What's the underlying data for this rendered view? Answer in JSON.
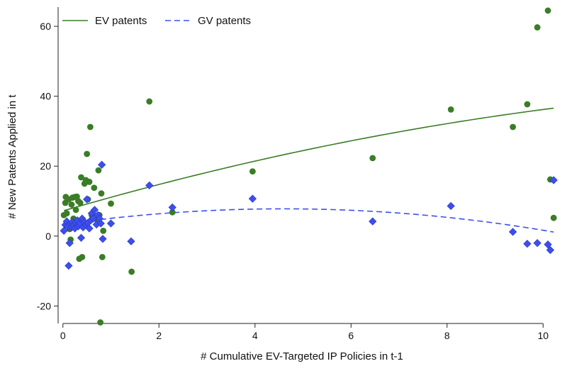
{
  "chart_data": {
    "type": "scatter",
    "title": "",
    "xlabel": "# Cumulative EV-Targeted IP Policies in t-1",
    "ylabel": "# New Patents Applied in t",
    "xlim": [
      -0.1,
      10.35
    ],
    "ylim": [
      -25,
      65.5
    ],
    "x_ticks": [
      0,
      2,
      4,
      6,
      8,
      10
    ],
    "y_ticks": [
      -20,
      0,
      20,
      40,
      60
    ],
    "x_tick_labels": [
      "0",
      "2",
      "4",
      "6",
      "8",
      "10"
    ],
    "y_tick_labels": [
      "-20",
      "0",
      "20",
      "40",
      "60"
    ],
    "grid": false,
    "legend_position": "top-left",
    "legend": [
      {
        "label": "EV patents",
        "color": "#3a7d25",
        "style": "solid"
      },
      {
        "label": "GV patents",
        "color": "#3d4ef0",
        "style": "dashed"
      }
    ],
    "series": [
      {
        "name": "EV patents",
        "kind": "points",
        "marker": "circle",
        "color": "#3a7d25",
        "points": [
          [
            0.02,
            6
          ],
          [
            0.05,
            9.5
          ],
          [
            0.06,
            11.2
          ],
          [
            0.08,
            6.5
          ],
          [
            0.1,
            3.5
          ],
          [
            0.12,
            10.5
          ],
          [
            0.14,
            2
          ],
          [
            0.16,
            -1
          ],
          [
            0.18,
            9
          ],
          [
            0.2,
            11
          ],
          [
            0.22,
            5
          ],
          [
            0.25,
            11.2
          ],
          [
            0.27,
            7.5
          ],
          [
            0.29,
            11.3
          ],
          [
            0.3,
            3
          ],
          [
            0.32,
            10
          ],
          [
            0.34,
            -6.5
          ],
          [
            0.36,
            9.5
          ],
          [
            0.38,
            16.8
          ],
          [
            0.4,
            -6
          ],
          [
            0.42,
            4
          ],
          [
            0.45,
            15
          ],
          [
            0.48,
            16
          ],
          [
            0.5,
            23.5
          ],
          [
            0.52,
            10.5
          ],
          [
            0.55,
            15.5
          ],
          [
            0.57,
            31.2
          ],
          [
            0.6,
            6
          ],
          [
            0.65,
            13.8
          ],
          [
            0.7,
            4.8
          ],
          [
            0.74,
            18.8
          ],
          [
            0.76,
            6
          ],
          [
            0.78,
            -24.7
          ],
          [
            0.8,
            12.2
          ],
          [
            0.82,
            -6
          ],
          [
            0.84,
            1.5
          ],
          [
            1.0,
            9.3
          ],
          [
            1.43,
            -10.2
          ],
          [
            1.8,
            38.5
          ],
          [
            2.28,
            6.8
          ],
          [
            3.95,
            18.5
          ],
          [
            6.45,
            22.3
          ],
          [
            8.08,
            36.2
          ],
          [
            9.37,
            31.2
          ],
          [
            9.67,
            37.7
          ],
          [
            9.88,
            59.7
          ],
          [
            10.1,
            64.5
          ],
          [
            10.15,
            16.2
          ],
          [
            10.22,
            5.2
          ]
        ]
      },
      {
        "name": "GV patents",
        "kind": "points",
        "marker": "diamond",
        "color": "#3d4ef0",
        "points": [
          [
            0.02,
            1.5
          ],
          [
            0.05,
            3.2
          ],
          [
            0.08,
            4.2
          ],
          [
            0.1,
            2.8
          ],
          [
            0.12,
            -8.5
          ],
          [
            0.14,
            -2
          ],
          [
            0.16,
            3.5
          ],
          [
            0.18,
            2.5
          ],
          [
            0.2,
            4
          ],
          [
            0.22,
            3
          ],
          [
            0.25,
            2.2
          ],
          [
            0.27,
            3.8
          ],
          [
            0.3,
            4.5
          ],
          [
            0.32,
            2.8
          ],
          [
            0.35,
            3.5
          ],
          [
            0.38,
            -0.5
          ],
          [
            0.4,
            5
          ],
          [
            0.42,
            2.5
          ],
          [
            0.45,
            4
          ],
          [
            0.48,
            3.2
          ],
          [
            0.5,
            10.5
          ],
          [
            0.52,
            3.8
          ],
          [
            0.55,
            2.2
          ],
          [
            0.58,
            4.5
          ],
          [
            0.6,
            6.5
          ],
          [
            0.63,
            5
          ],
          [
            0.66,
            7.5
          ],
          [
            0.7,
            3.3
          ],
          [
            0.73,
            6
          ],
          [
            0.76,
            5
          ],
          [
            0.79,
            3.6
          ],
          [
            0.81,
            20.4
          ],
          [
            0.83,
            -0.8
          ],
          [
            1.0,
            3.6
          ],
          [
            1.42,
            -1.5
          ],
          [
            1.8,
            14.5
          ],
          [
            2.28,
            8.2
          ],
          [
            3.95,
            10.7
          ],
          [
            6.45,
            4.2
          ],
          [
            8.08,
            8.6
          ],
          [
            9.37,
            1.2
          ],
          [
            9.67,
            -2.2
          ],
          [
            9.88,
            -2
          ],
          [
            10.1,
            -2.4
          ],
          [
            10.15,
            -4
          ],
          [
            10.22,
            16
          ]
        ]
      },
      {
        "name": "EV patents",
        "kind": "fit",
        "style": "solid",
        "color": "#3a7d25",
        "x_range": [
          0.02,
          10.22
        ],
        "coefficients": [
          7.2,
          4.0,
          -0.11
        ]
      },
      {
        "name": "GV patents",
        "kind": "fit",
        "style": "dashed",
        "color": "#3d4ef0",
        "x_range": [
          0.02,
          10.22
        ],
        "coefficients": [
          3.36,
          1.93,
          -0.21
        ]
      }
    ]
  }
}
